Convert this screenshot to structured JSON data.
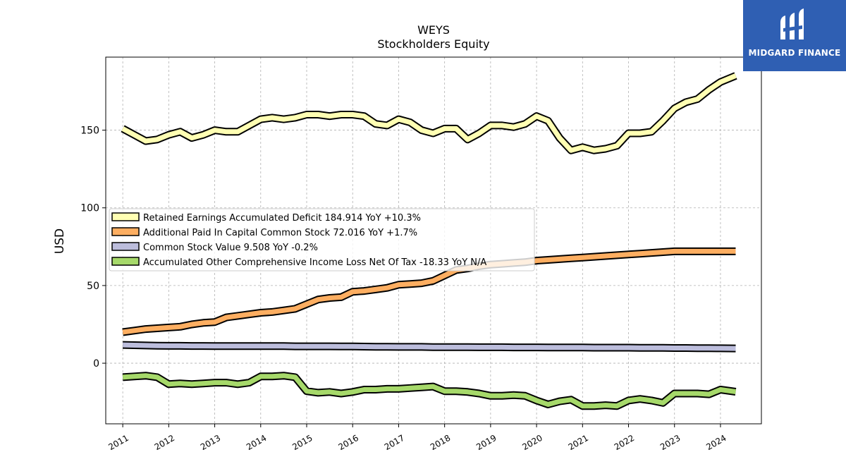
{
  "chart_data": {
    "type": "line",
    "title": "WEYS",
    "subtitle": "Stockholders  Equity",
    "ylabel": "USD",
    "xlabel": "",
    "xlim": [
      2010.63,
      2024.89
    ],
    "ylim": [
      -39,
      197
    ],
    "yticks": [
      0,
      50,
      100,
      150
    ],
    "xticks": [
      2011,
      2012,
      2013,
      2014,
      2015,
      2016,
      2017,
      2018,
      2019,
      2020,
      2021,
      2022,
      2023,
      2024
    ],
    "grid": true,
    "legend_position": "center-left",
    "x": [
      2011.0,
      2011.25,
      2011.5,
      2011.75,
      2012.0,
      2012.25,
      2012.5,
      2012.75,
      2013.0,
      2013.25,
      2013.5,
      2013.75,
      2014.0,
      2014.25,
      2014.5,
      2014.75,
      2015.0,
      2015.25,
      2015.5,
      2015.75,
      2016.0,
      2016.25,
      2016.5,
      2016.75,
      2017.0,
      2017.25,
      2017.5,
      2017.75,
      2018.0,
      2018.25,
      2018.5,
      2018.75,
      2019.0,
      2019.25,
      2019.5,
      2019.75,
      2020.0,
      2020.25,
      2020.5,
      2020.75,
      2021.0,
      2021.25,
      2021.5,
      2021.75,
      2022.0,
      2022.25,
      2022.5,
      2022.75,
      2023.0,
      2023.25,
      2023.5,
      2023.75,
      2024.0,
      2024.33
    ],
    "series": [
      {
        "name": "Retained Earnings Accumulated Deficit  184.914 YoY +10.3%",
        "color": "#ffffb3",
        "values": [
          151,
          147,
          143,
          144,
          147,
          149,
          145,
          147,
          150,
          149,
          149,
          153,
          157,
          158,
          157,
          158,
          160,
          160,
          159,
          160,
          160,
          159,
          154,
          153,
          157,
          155,
          150,
          148,
          151,
          151,
          144,
          148,
          153,
          153,
          152,
          154,
          159,
          156,
          145,
          137,
          139,
          137,
          138,
          140,
          148,
          148,
          149,
          156,
          164,
          168,
          170,
          176,
          181,
          185
        ]
      },
      {
        "name": "Additional Paid In Capital Common Stock  72.016 YoY +1.7%",
        "color": "#fdae61",
        "values": [
          20,
          21,
          22,
          22.5,
          23,
          23.5,
          25,
          26,
          26.5,
          29.5,
          30.5,
          31.5,
          32.5,
          33,
          34,
          35,
          38,
          41,
          42,
          42.5,
          46,
          46.5,
          47.5,
          48.5,
          50.5,
          51,
          51.5,
          53,
          56.5,
          60,
          61,
          62.5,
          63.5,
          64,
          64.5,
          65,
          66,
          66.5,
          67,
          67.5,
          68,
          68.5,
          69,
          69.5,
          70,
          70.5,
          71,
          71.5,
          72,
          72,
          72,
          72,
          72,
          72
        ]
      },
      {
        "name": "Common Stock Value  9.508 YoY -0.2%",
        "color": "#bcbddc",
        "values": [
          11.8,
          11.6,
          11.4,
          11.3,
          11.2,
          11.2,
          11.1,
          11.1,
          11.0,
          11.0,
          11.0,
          11.0,
          11.0,
          11.0,
          11.0,
          10.9,
          10.9,
          10.9,
          10.9,
          10.8,
          10.8,
          10.7,
          10.6,
          10.6,
          10.5,
          10.5,
          10.5,
          10.4,
          10.4,
          10.4,
          10.4,
          10.3,
          10.3,
          10.3,
          10.2,
          10.2,
          10.2,
          10.1,
          10.1,
          10.1,
          10.1,
          10.0,
          10.0,
          10.0,
          10.0,
          9.9,
          9.9,
          9.9,
          9.8,
          9.8,
          9.7,
          9.7,
          9.6,
          9.5
        ]
      },
      {
        "name": "Accumulated Other Comprehensive Income Loss Net Of Tax  -18.33 YoY N/A",
        "color": "#a6d96a",
        "values": [
          -9,
          -8.5,
          -8,
          -9,
          -13.5,
          -13,
          -13.5,
          -13,
          -12.5,
          -12.5,
          -13.5,
          -12.5,
          -8.5,
          -8.5,
          -8,
          -9,
          -18,
          -19,
          -18.5,
          -19.5,
          -18.5,
          -17,
          -17,
          -16.5,
          -16.5,
          -16,
          -15.5,
          -15,
          -18,
          -18,
          -18.5,
          -19.5,
          -21,
          -21,
          -20.5,
          -21,
          -24,
          -26.5,
          -24.5,
          -23.5,
          -27.5,
          -27.5,
          -27,
          -27.5,
          -24,
          -23,
          -24,
          -25.5,
          -19.5,
          -19.5,
          -19.5,
          -20,
          -17,
          -18.33
        ]
      }
    ]
  }
}
